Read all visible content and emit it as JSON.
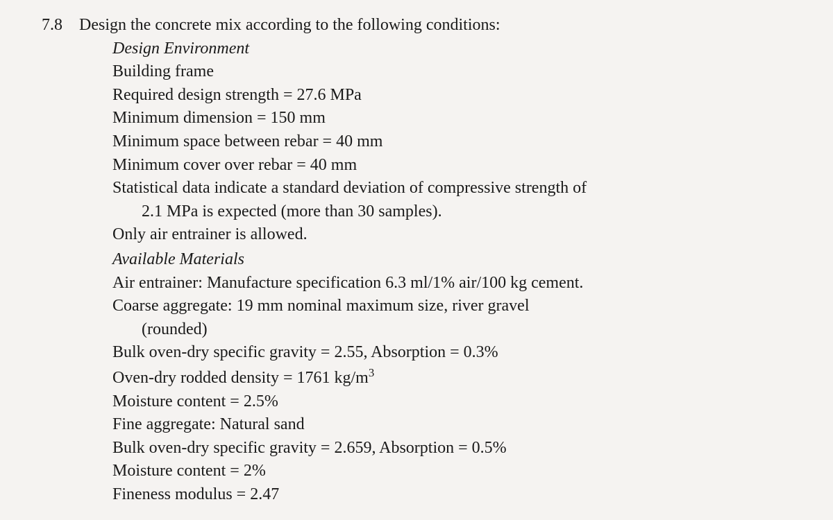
{
  "problem": {
    "number": "7.8",
    "intro": "Design the concrete mix according to the following conditions:",
    "designEnvironment": {
      "header": "Design Environment",
      "lines": {
        "buildingFrame": "Building frame",
        "designStrength": "Required design strength = 27.6 MPa",
        "minDimension": "Minimum dimension = 150 mm",
        "minSpaceRebar": "Minimum space between rebar = 40 mm",
        "minCoverRebar": "Minimum cover over rebar = 40 mm",
        "statLine1": "Statistical data indicate a standard deviation of compressive strength of",
        "statLine2": "2.1 MPa is expected (more than 30 samples).",
        "airEntrainer": "Only air entrainer is allowed."
      }
    },
    "availableMaterials": {
      "header": "Available Materials",
      "lines": {
        "airEntrainer": "Air entrainer: Manufacture specification 6.3 ml/1% air/100 kg cement.",
        "coarseAggLine1": "Coarse aggregate: 19 mm nominal maximum size, river gravel",
        "coarseAggLine2": "(rounded)",
        "bulkSpecGravCoarse": "Bulk oven-dry specific gravity = 2.55, Absorption = 0.3%",
        "ovenDryRoddedPrefix": "Oven-dry rodded density = 1761 kg/m",
        "moistureCoarse": "Moisture content = 2.5%",
        "fineAgg": "Fine aggregate: Natural sand",
        "bulkSpecGravFine": "Bulk oven-dry specific gravity = 2.659, Absorption = 0.5%",
        "moistureFine": "Moisture content = 2%",
        "finenessModulus": "Fineness modulus = 2.47"
      }
    }
  },
  "style": {
    "backgroundColor": "#f5f3f1",
    "textColor": "#1a1a1a",
    "fontFamily": "Times New Roman",
    "baseFontSize": 24,
    "indentPx": 48,
    "hangingIndentPx": 42
  }
}
